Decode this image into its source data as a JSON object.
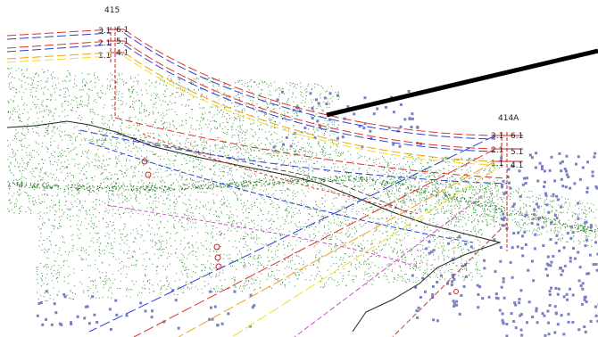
{
  "towers": [
    {
      "name": "415",
      "attachments": {
        "left": [
          "3.1",
          "2.1",
          "1.1"
        ],
        "right": [
          "6.1",
          "5.1",
          "4.1"
        ]
      }
    },
    {
      "name": "414A",
      "attachments": {
        "left": [
          "3.1",
          "2.1",
          "1.1"
        ],
        "right": [
          "6.1",
          "5.1",
          "4.1"
        ]
      }
    }
  ],
  "colors": {
    "background": "#ffffff",
    "vegetation_points": "#3c9b3c",
    "vegetation_dense": "#2e7d2e",
    "structure_points": "#7b7fc4",
    "phase_red": "#e0302a",
    "phase_blue": "#2b3fd6",
    "phase_yellow": "#f0e020",
    "phase_orange": "#f0a020",
    "phase_magenta": "#d050d0",
    "ground_line": "#222222",
    "overhead_wire": "#000000",
    "tower_red": "#cc2020"
  },
  "icons": {
    "tree_marker": "tree-marker-icon"
  }
}
